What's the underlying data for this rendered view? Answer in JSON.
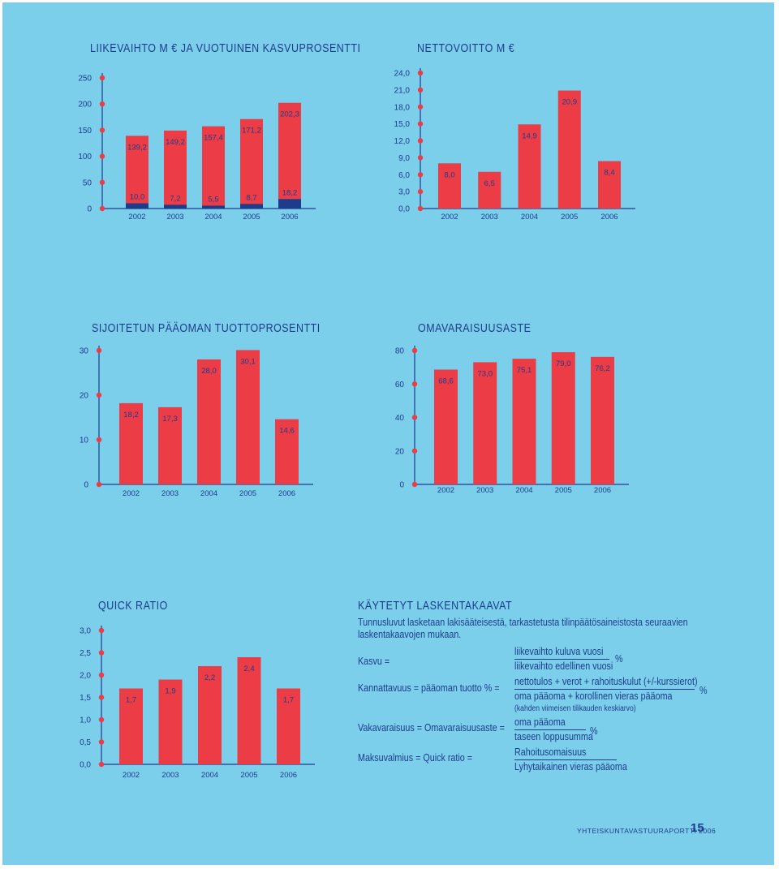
{
  "chart_data": [
    {
      "id": "liikevaihto",
      "type": "bar",
      "title": "LIIKEVAIHTO M €  JA VUOTUINEN KASVUPROSENTTI",
      "categories": [
        "2002",
        "2003",
        "2004",
        "2005",
        "2006"
      ],
      "series": [
        {
          "values": [
            139.2,
            149.2,
            157.4,
            171.2,
            202.3
          ],
          "labels": [
            "139,2",
            "149,2",
            "157,4",
            "171,2",
            "202,3"
          ],
          "color": "#ec3c45"
        },
        {
          "values": [
            10.0,
            7.2,
            5.5,
            8.7,
            18.2
          ],
          "labels": [
            "10,0",
            "7,2",
            "5,5",
            "8,7",
            "18,2"
          ],
          "color": "#1d3c8c"
        }
      ],
      "y_ticks": [
        {
          "v": 0,
          "label": "0"
        },
        {
          "v": 50,
          "label": "50"
        },
        {
          "v": 100,
          "label": "100"
        },
        {
          "v": 150,
          "label": "150"
        },
        {
          "v": 200,
          "label": "200"
        },
        {
          "v": 250,
          "label": "250"
        }
      ],
      "ylim": [
        0,
        250
      ],
      "grid": false
    },
    {
      "id": "nettovoitto",
      "type": "bar",
      "title": "NETTOVOITTO M €",
      "categories": [
        "2002",
        "2003",
        "2004",
        "2005",
        "2006"
      ],
      "series": [
        {
          "values": [
            8.0,
            6.5,
            14.9,
            20.9,
            8.4
          ],
          "labels": [
            "8,0",
            "6,5",
            "14,9",
            "20,9",
            "8,4"
          ],
          "color": "#ec3c45"
        }
      ],
      "y_ticks": [
        {
          "v": 0,
          "label": "0,0"
        },
        {
          "v": 3,
          "label": "3,0"
        },
        {
          "v": 6,
          "label": "6,0"
        },
        {
          "v": 9,
          "label": "9,0"
        },
        {
          "v": 12,
          "label": "12,0"
        },
        {
          "v": 15,
          "label": "15,0"
        },
        {
          "v": 18,
          "label": "18,0"
        },
        {
          "v": 21,
          "label": "21,0"
        },
        {
          "v": 24,
          "label": "24,0"
        }
      ],
      "ylim": [
        0,
        24
      ],
      "grid": false
    },
    {
      "id": "tuottoprosentti",
      "type": "bar",
      "title": "SIJOITETUN PÄÄOMAN TUOTTOPROSENTTI",
      "categories": [
        "2002",
        "2003",
        "2004",
        "2005",
        "2006"
      ],
      "series": [
        {
          "values": [
            18.2,
            17.3,
            28.0,
            30.1,
            14.6
          ],
          "labels": [
            "18,2",
            "17,3",
            "28,0",
            "30,1",
            "14,6"
          ],
          "color": "#ec3c45"
        }
      ],
      "y_ticks": [
        {
          "v": 0,
          "label": "0"
        },
        {
          "v": 10,
          "label": "10"
        },
        {
          "v": 20,
          "label": "20"
        },
        {
          "v": 30,
          "label": "30"
        }
      ],
      "ylim": [
        0,
        30
      ],
      "grid": false
    },
    {
      "id": "omavaraisuusaste",
      "type": "bar",
      "title": "OMAVARAISUUSASTE",
      "categories": [
        "2002",
        "2003",
        "2004",
        "2005",
        "2006"
      ],
      "series": [
        {
          "values": [
            68.6,
            73.0,
            75.1,
            79.0,
            76.2
          ],
          "labels": [
            "68,6",
            "73,0",
            "75,1",
            "79,0",
            "76,2"
          ],
          "color": "#ec3c45"
        }
      ],
      "y_ticks": [
        {
          "v": 0,
          "label": "0"
        },
        {
          "v": 20,
          "label": "20"
        },
        {
          "v": 40,
          "label": "40"
        },
        {
          "v": 60,
          "label": "60"
        },
        {
          "v": 80,
          "label": "80"
        }
      ],
      "ylim": [
        0,
        80
      ],
      "grid": false
    },
    {
      "id": "quickratio",
      "type": "bar",
      "title": "QUICK RATIO",
      "categories": [
        "2002",
        "2003",
        "2004",
        "2005",
        "2006"
      ],
      "series": [
        {
          "values": [
            1.7,
            1.9,
            2.2,
            2.4,
            1.7
          ],
          "labels": [
            "1,7",
            "1,9",
            "2,2",
            "2,4",
            "1,7"
          ],
          "color": "#ec3c45"
        }
      ],
      "y_ticks": [
        {
          "v": 0,
          "label": "0,0"
        },
        {
          "v": 0.5,
          "label": "0,5"
        },
        {
          "v": 1.0,
          "label": "1,0"
        },
        {
          "v": 1.5,
          "label": "1,5"
        },
        {
          "v": 2.0,
          "label": "2,0"
        },
        {
          "v": 2.5,
          "label": "2,5"
        },
        {
          "v": 3.0,
          "label": "3,0"
        }
      ],
      "ylim": [
        0,
        3
      ],
      "grid": false
    }
  ],
  "formulas": {
    "title": "KÄYTETYT LASKENTAKAAVAT",
    "intro_1": "Tunnusluvut lasketaan lakisääteisestä, tarkastetusta tilinpäätösaineistosta seuraavien",
    "intro_2": "laskentakaavojen mukaan.",
    "kasvu_label": "Kasvu =",
    "kasvu_numerator": "liikevaihto kuluva vuosi",
    "kasvu_denominator": "liikevaihto edellinen vuosi",
    "kasvu_unit": "%",
    "kannattavuus_label": "Kannattavuus  =  pääoman tuotto % =",
    "kannattavuus_numerator": "nettotulos + verot + rahoituskulut  (+/-kurssierot)",
    "kannattavuus_denominator": "oma pääoma + korollinen vieras pääoma",
    "kannattavuus_unit": "%",
    "kannattavuus_note": "(kahden viimeisen tilikauden keskiarvo)",
    "vakavaraisuus_label": "Vakavaraisuus  = Omavaraisuusaste  =",
    "vakavaraisuus_numerator": "oma pääoma",
    "vakavaraisuus_denominator": "taseen loppusumma",
    "vakavaraisuus_unit": "%",
    "maksuvalmius_label": "Maksuvalmius =  Quick ratio  =",
    "maksuvalmius_numerator": "Rahoitusomaisuus",
    "maksuvalmius_denominator": "Lyhytaikainen vieras pääoma"
  },
  "footer": {
    "text": "YHTEISKUNTAVASTUURAPORTTI 2006",
    "page": "15"
  }
}
